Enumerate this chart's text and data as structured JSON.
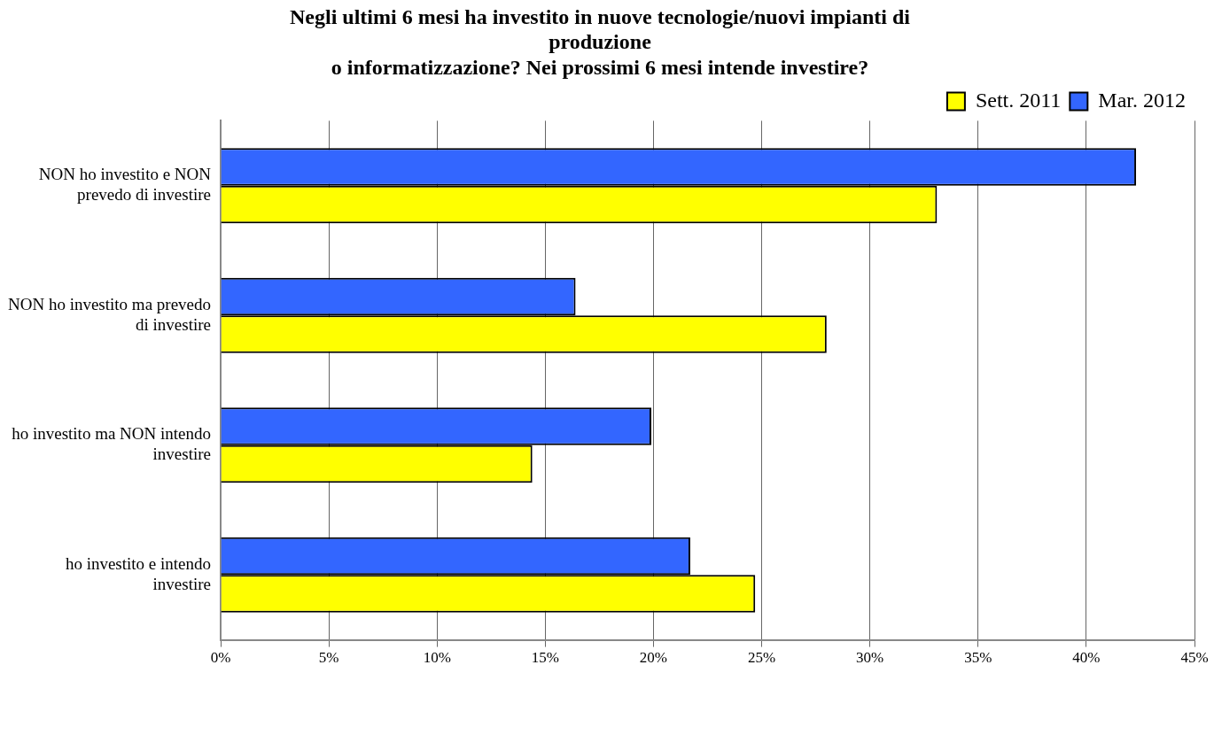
{
  "chart_data": {
    "type": "bar",
    "orientation": "horizontal",
    "title": "Negli ultimi 6 mesi ha investito in nuove tecnologie/nuovi impianti di\nproduzione\no informatizzazione? Nei prossimi 6 mesi intende investire?",
    "categories": [
      "NON ho investito e NON prevedo di investire",
      "NON ho investito ma prevedo di investire",
      "ho investito ma NON intendo investire",
      "ho investito e intendo investire"
    ],
    "series": [
      {
        "name": "Mar. 2012",
        "color": "#3366ff",
        "values": [
          0.423,
          0.164,
          0.199,
          0.217
        ]
      },
      {
        "name": "Sett. 2011",
        "color": "#ffff00",
        "values": [
          0.331,
          0.28,
          0.144,
          0.247
        ]
      }
    ],
    "xlim": [
      0,
      0.45
    ],
    "xticks": [
      {
        "value": 0,
        "label": "0%"
      },
      {
        "value": 0.05,
        "label": "5%"
      },
      {
        "value": 0.1,
        "label": "10%"
      },
      {
        "value": 0.15,
        "label": "15%"
      },
      {
        "value": 0.2,
        "label": "20%"
      },
      {
        "value": 0.25,
        "label": "25%"
      },
      {
        "value": 0.3,
        "label": "30%"
      },
      {
        "value": 0.35,
        "label": "35%"
      },
      {
        "value": 0.4,
        "label": "40%"
      },
      {
        "value": 0.45,
        "label": "45%"
      }
    ],
    "grid": "x",
    "legend": "top right"
  }
}
